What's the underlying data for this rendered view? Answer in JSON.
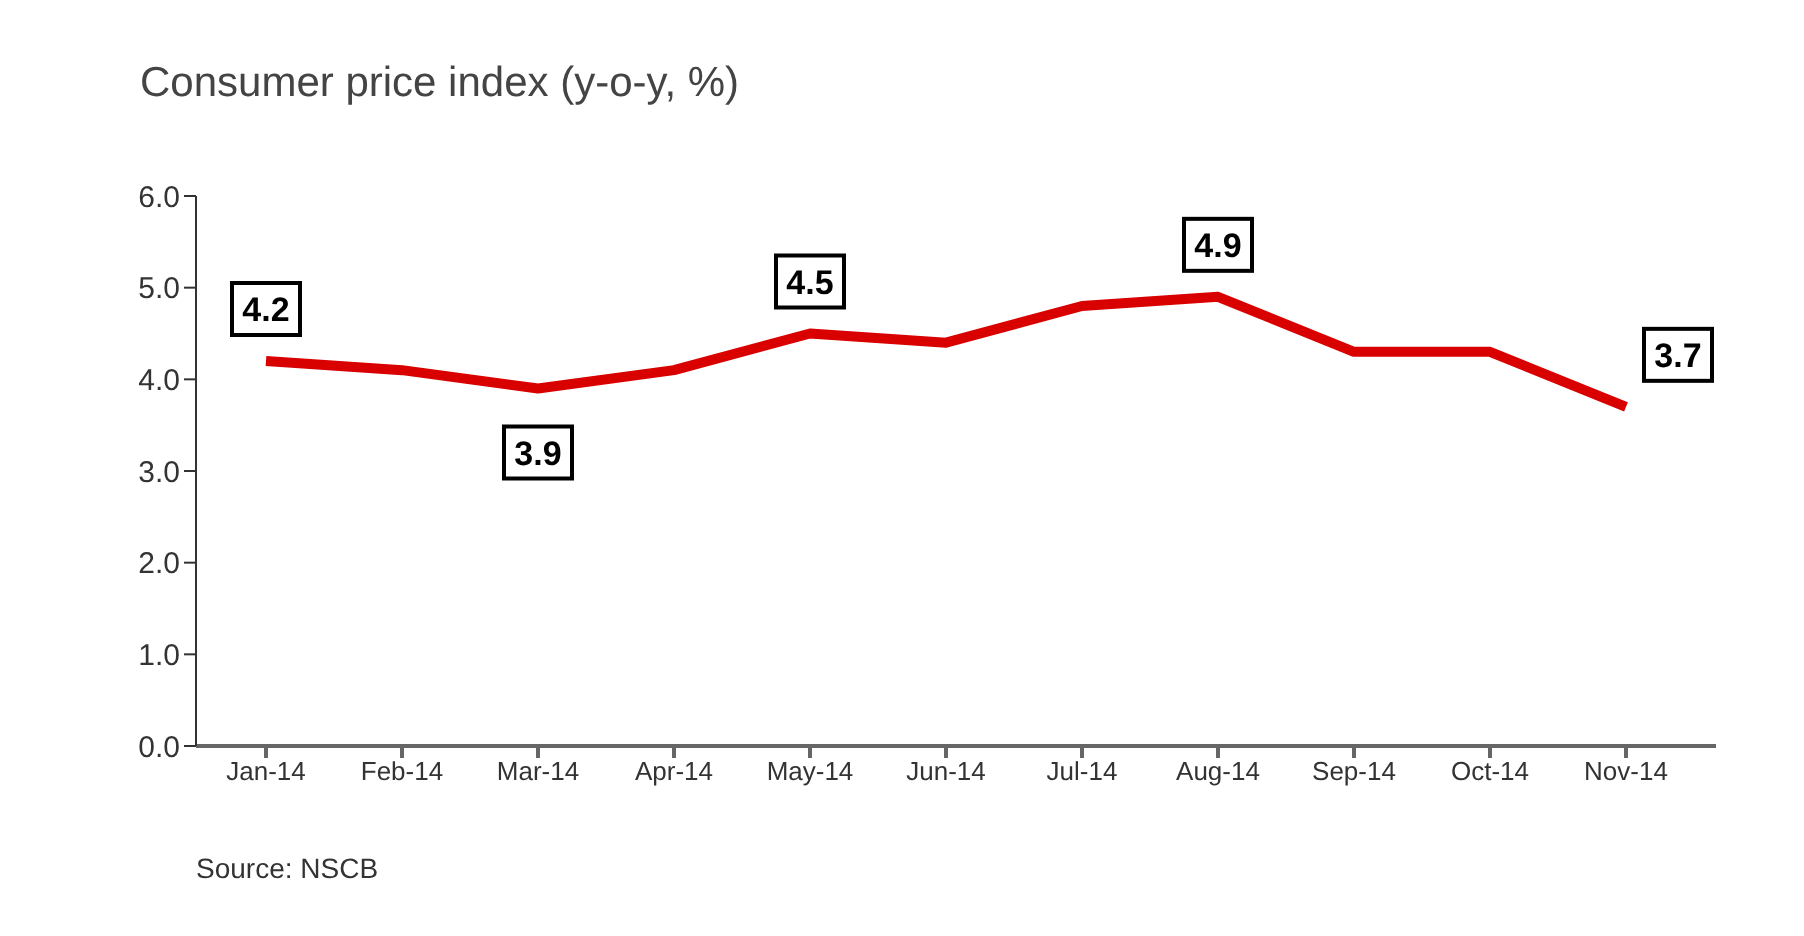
{
  "chart_data": {
    "type": "line",
    "title": "Consumer price index (y-o-y, %)",
    "categories": [
      "Jan-14",
      "Feb-14",
      "Mar-14",
      "Apr-14",
      "May-14",
      "Jun-14",
      "Jul-14",
      "Aug-14",
      "Sep-14",
      "Oct-14",
      "Nov-14"
    ],
    "series": [
      {
        "color": "#d90000",
        "values": [
          4.2,
          4.1,
          3.9,
          4.1,
          4.5,
          4.4,
          4.8,
          4.9,
          4.3,
          4.3,
          3.7
        ],
        "value_labels": [
          "4.2",
          null,
          "3.9",
          null,
          "4.5",
          null,
          null,
          "4.9",
          null,
          null,
          "3.7"
        ]
      }
    ],
    "ylim": [
      0,
      6
    ],
    "yticks": [
      {
        "value": 0,
        "label": "0.0"
      },
      {
        "value": 1,
        "label": "1.0"
      },
      {
        "value": 2,
        "label": "2.0"
      },
      {
        "value": 3,
        "label": "3.0"
      },
      {
        "value": 4,
        "label": "4.0"
      },
      {
        "value": 5,
        "label": "5.0"
      },
      {
        "value": 6,
        "label": "6.0"
      }
    ],
    "grid": false,
    "legend": false,
    "marker": "none",
    "line_style": "solid",
    "annotations": [
      "Source: NSCB"
    ]
  }
}
